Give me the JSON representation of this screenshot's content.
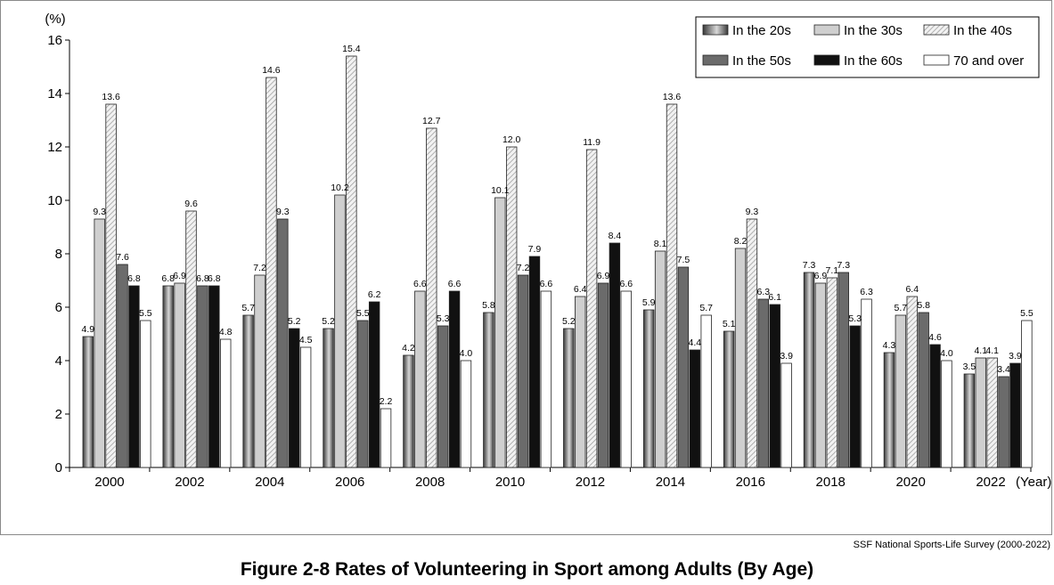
{
  "caption": "Figure 2-8  Rates of Volunteering in Sport among Adults (By Age)",
  "source": "SSF National Sports-Life Survey (2000-2022)",
  "chart_data": {
    "type": "bar",
    "title": "Figure 2-8  Rates of Volunteering in Sport among Adults (By Age)",
    "ylabel": "(%)",
    "xlabel": "(Year)",
    "ylim": [
      0,
      16
    ],
    "yticks": [
      0,
      2,
      4,
      6,
      8,
      10,
      12,
      14,
      16
    ],
    "grid": false,
    "legend_position": "top-right",
    "categories": [
      "2000",
      "2002",
      "2004",
      "2006",
      "2008",
      "2010",
      "2012",
      "2014",
      "2016",
      "2018",
      "2020",
      "2022"
    ],
    "series": [
      {
        "name": "In the 20s",
        "style": "gradient-gray",
        "values": [
          4.9,
          6.8,
          5.7,
          5.2,
          4.2,
          5.8,
          5.2,
          5.9,
          5.1,
          7.3,
          4.3,
          3.5
        ]
      },
      {
        "name": "In the 30s",
        "style": "light-gray",
        "values": [
          9.3,
          6.9,
          7.2,
          10.2,
          6.6,
          10.1,
          6.4,
          8.1,
          8.2,
          6.9,
          5.7,
          4.1
        ]
      },
      {
        "name": "In the 40s",
        "style": "hatched",
        "values": [
          13.6,
          9.6,
          14.6,
          15.4,
          12.7,
          12.0,
          11.9,
          13.6,
          9.3,
          7.1,
          6.4,
          4.1
        ]
      },
      {
        "name": "In the 50s",
        "style": "dark-gray",
        "values": [
          7.6,
          6.8,
          9.3,
          5.5,
          5.3,
          7.2,
          6.9,
          7.5,
          6.3,
          7.3,
          5.8,
          3.4
        ]
      },
      {
        "name": "In the 60s",
        "style": "black",
        "values": [
          6.8,
          6.8,
          5.2,
          6.2,
          6.6,
          7.9,
          8.4,
          4.4,
          6.1,
          5.3,
          4.6,
          3.9
        ]
      },
      {
        "name": "70 and over",
        "style": "white",
        "values": [
          5.5,
          4.8,
          4.5,
          2.2,
          4.0,
          6.6,
          6.6,
          5.7,
          3.9,
          6.3,
          4.0,
          5.5
        ]
      }
    ],
    "colors": {
      "gradient_dark": "#3a3a3a",
      "gradient_light": "#d8d8d8",
      "light_gray": "#cfcfcf",
      "hatch_bg": "#f2f2f2",
      "hatch_line": "#a0a0a0",
      "dark_gray": "#6b6b6b",
      "black": "#111111",
      "white": "#ffffff",
      "outline": "#222222"
    }
  }
}
